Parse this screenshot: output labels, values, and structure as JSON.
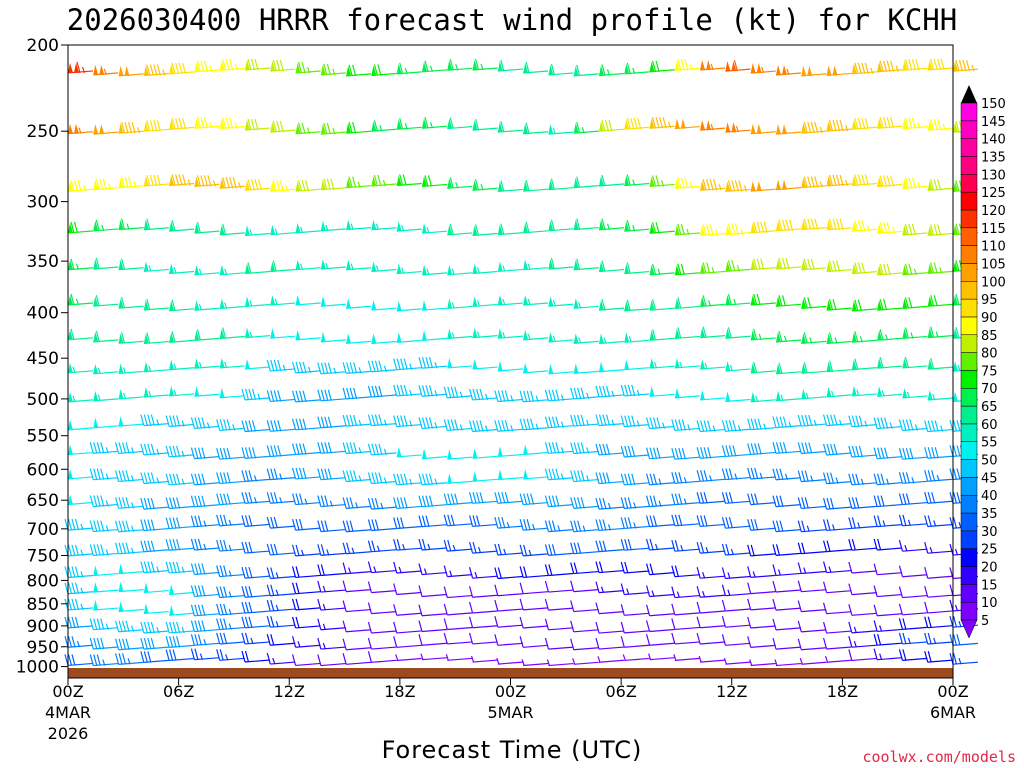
{
  "chart_data": {
    "type": "wind-barb time-height cross-section",
    "title": "2026030400 HRRR forecast wind profile (kt) for KCHH",
    "xlabel": "Forecast Time (UTC)",
    "watermark": "coolwx.com/models",
    "y_levels_hpa": [
      200,
      250,
      300,
      350,
      400,
      450,
      500,
      550,
      600,
      650,
      700,
      750,
      800,
      850,
      900,
      950,
      1000
    ],
    "ylim": [
      200,
      1030
    ],
    "y_scale": "log-pressure",
    "x_ticks": [
      {
        "time": "00Z",
        "date": "4MAR",
        "year": "2026",
        "hour": 0
      },
      {
        "time": "06Z",
        "date": "",
        "year": "",
        "hour": 6
      },
      {
        "time": "12Z",
        "date": "",
        "year": "",
        "hour": 12
      },
      {
        "time": "18Z",
        "date": "",
        "year": "",
        "hour": 18
      },
      {
        "time": "00Z",
        "date": "5MAR",
        "year": "",
        "hour": 24
      },
      {
        "time": "06Z",
        "date": "",
        "year": "",
        "hour": 30
      },
      {
        "time": "12Z",
        "date": "",
        "year": "",
        "hour": 36
      },
      {
        "time": "18Z",
        "date": "",
        "year": "",
        "hour": 42
      },
      {
        "time": "00Z",
        "date": "6MAR",
        "year": "",
        "hour": 48
      }
    ],
    "xlim_hours": [
      0,
      48
    ],
    "colorbar": {
      "levels": [
        5,
        10,
        15,
        20,
        25,
        30,
        35,
        40,
        45,
        50,
        55,
        60,
        65,
        70,
        75,
        80,
        85,
        90,
        95,
        100,
        105,
        110,
        115,
        120,
        125,
        130,
        135,
        140,
        145,
        150
      ],
      "colors": [
        "#8000ff",
        "#6000ff",
        "#3000ff",
        "#0000ff",
        "#0040ff",
        "#0060ff",
        "#0080ff",
        "#00a0ff",
        "#00c8ff",
        "#00f0f0",
        "#00f0c0",
        "#00f090",
        "#00f050",
        "#00f000",
        "#60f000",
        "#c0f000",
        "#ffff00",
        "#ffe000",
        "#ffc000",
        "#ffa000",
        "#ff8000",
        "#ff6000",
        "#ff3000",
        "#ff0000",
        "#ff0050",
        "#ff0080",
        "#ff00a0",
        "#ff00c0",
        "#ff00e0",
        "#000000"
      ]
    },
    "surface_color": "#9c4a1e",
    "wind_speed_kt_by_level": [
      {
        "p": 215,
        "speed": [
          115,
          100,
          90,
          85,
          80,
          75,
          70,
          65,
          65,
          60,
          60,
          65,
          70,
          110,
          105,
          100,
          95,
          90,
          95
        ]
      },
      {
        "p": 250,
        "speed": [
          105,
          95,
          90,
          85,
          80,
          75,
          65,
          65,
          60,
          60,
          55,
          85,
          100,
          105,
          100,
          95,
          90,
          85,
          80
        ]
      },
      {
        "p": 290,
        "speed": [
          85,
          85,
          95,
          95,
          85,
          80,
          75,
          70,
          65,
          60,
          60,
          60,
          80,
          95,
          100,
          95,
          90,
          85,
          75
        ]
      },
      {
        "p": 325,
        "speed": [
          70,
          65,
          60,
          60,
          55,
          55,
          55,
          55,
          60,
          60,
          60,
          65,
          70,
          85,
          90,
          90,
          85,
          80,
          75
        ]
      },
      {
        "p": 360,
        "speed": [
          65,
          60,
          55,
          55,
          60,
          55,
          55,
          55,
          55,
          55,
          60,
          60,
          65,
          75,
          80,
          80,
          80,
          75,
          70
        ]
      },
      {
        "p": 395,
        "speed": [
          65,
          60,
          60,
          55,
          55,
          50,
          50,
          50,
          55,
          55,
          55,
          60,
          60,
          65,
          70,
          70,
          70,
          70,
          65
        ]
      },
      {
        "p": 430,
        "speed": [
          60,
          60,
          60,
          60,
          50,
          50,
          50,
          50,
          55,
          55,
          55,
          55,
          60,
          60,
          65,
          65,
          65,
          65,
          60
        ]
      },
      {
        "p": 465,
        "speed": [
          55,
          55,
          55,
          55,
          45,
          45,
          45,
          45,
          50,
          50,
          50,
          50,
          55,
          55,
          60,
          60,
          60,
          60,
          55
        ]
      },
      {
        "p": 500,
        "speed": [
          55,
          55,
          55,
          50,
          40,
          40,
          40,
          45,
          45,
          45,
          45,
          45,
          50,
          50,
          55,
          55,
          55,
          55,
          50
        ]
      },
      {
        "p": 540,
        "speed": [
          50,
          50,
          45,
          45,
          40,
          40,
          45,
          45,
          45,
          45,
          45,
          45,
          45,
          45,
          45,
          45,
          45,
          45,
          45
        ]
      },
      {
        "p": 580,
        "speed": [
          50,
          45,
          45,
          40,
          40,
          40,
          45,
          50,
          50,
          50,
          45,
          40,
          40,
          40,
          40,
          40,
          40,
          40,
          40
        ]
      },
      {
        "p": 620,
        "speed": [
          50,
          45,
          45,
          40,
          35,
          40,
          45,
          45,
          50,
          50,
          45,
          40,
          35,
          35,
          35,
          35,
          35,
          35,
          35
        ]
      },
      {
        "p": 660,
        "speed": [
          50,
          45,
          40,
          40,
          35,
          35,
          35,
          40,
          40,
          40,
          40,
          35,
          35,
          30,
          30,
          30,
          30,
          30,
          30
        ]
      },
      {
        "p": 700,
        "speed": [
          45,
          45,
          40,
          35,
          30,
          30,
          30,
          30,
          30,
          35,
          35,
          35,
          30,
          30,
          30,
          25,
          25,
          25,
          25
        ]
      },
      {
        "p": 745,
        "speed": [
          45,
          45,
          40,
          35,
          30,
          25,
          25,
          25,
          25,
          25,
          30,
          30,
          25,
          25,
          20,
          20,
          20,
          15,
          15
        ]
      },
      {
        "p": 790,
        "speed": [
          45,
          50,
          45,
          35,
          25,
          20,
          15,
          15,
          15,
          20,
          20,
          20,
          20,
          15,
          15,
          15,
          10,
          10,
          10
        ]
      },
      {
        "p": 830,
        "speed": [
          45,
          50,
          50,
          35,
          25,
          15,
          10,
          10,
          10,
          10,
          10,
          15,
          15,
          15,
          10,
          10,
          10,
          10,
          10
        ]
      },
      {
        "p": 870,
        "speed": [
          45,
          50,
          50,
          35,
          25,
          15,
          10,
          10,
          10,
          10,
          10,
          10,
          10,
          10,
          10,
          10,
          10,
          10,
          15
        ]
      },
      {
        "p": 910,
        "speed": [
          40,
          45,
          45,
          35,
          25,
          15,
          10,
          10,
          10,
          10,
          10,
          10,
          10,
          10,
          10,
          10,
          15,
          20,
          25
        ]
      },
      {
        "p": 950,
        "speed": [
          35,
          40,
          40,
          30,
          20,
          15,
          10,
          10,
          10,
          10,
          10,
          10,
          10,
          10,
          10,
          10,
          15,
          25,
          30
        ]
      },
      {
        "p": 990,
        "speed": [
          30,
          35,
          30,
          25,
          15,
          10,
          10,
          5,
          5,
          5,
          5,
          5,
          5,
          5,
          5,
          5,
          10,
          20,
          25
        ]
      }
    ],
    "wind_direction_deg_by_level_note": "predominantly westerly aloft (barbs from the west), veering/light and variable near the surface"
  }
}
